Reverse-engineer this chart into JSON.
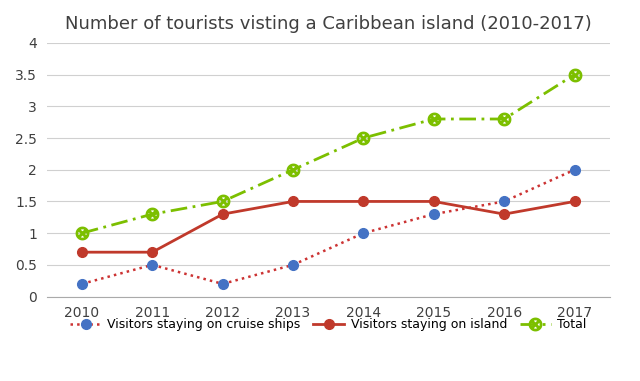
{
  "title": "Number of tourists visting a Caribbean island (2010-2017)",
  "years": [
    2010,
    2011,
    2012,
    2013,
    2014,
    2015,
    2016,
    2017
  ],
  "cruise_ships": [
    0.2,
    0.5,
    0.2,
    0.5,
    1.0,
    1.3,
    1.5,
    2.0
  ],
  "island": [
    0.7,
    0.7,
    1.3,
    1.5,
    1.5,
    1.5,
    1.3,
    1.5
  ],
  "total": [
    1.0,
    1.3,
    1.5,
    2.0,
    2.5,
    2.8,
    2.8,
    3.5
  ],
  "cruise_line_color": "#CC3333",
  "cruise_marker_color": "#4472C4",
  "island_color": "#C0392B",
  "total_color": "#7CBF00",
  "ylim": [
    0,
    4
  ],
  "yticks": [
    0,
    0.5,
    1.0,
    1.5,
    2.0,
    2.5,
    3.0,
    3.5,
    4.0
  ],
  "background_color": "#FFFFFF",
  "legend_cruise": "Visitors staying on cruise ships",
  "legend_island": "Visitors staying on island",
  "legend_total": "Total",
  "title_fontsize": 13,
  "title_color": "#404040"
}
